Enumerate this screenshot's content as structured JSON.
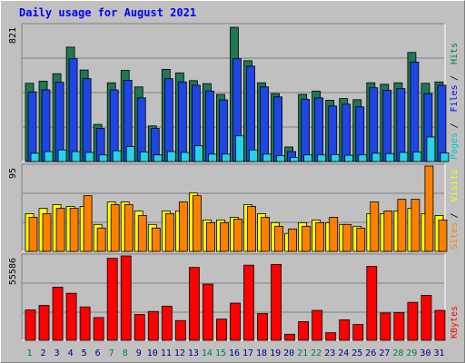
{
  "title": "Daily usage for August 2021",
  "chart_data": [
    {
      "type": "bar",
      "panel": "hits-files-pages",
      "max_label": "821",
      "legend": [
        "Pages",
        "Files",
        "Hits"
      ],
      "legend_colors": [
        "#00c8c8",
        "#0000ff",
        "#008040"
      ],
      "ylim": [
        0,
        821
      ],
      "categories": [
        "1",
        "2",
        "3",
        "4",
        "5",
        "6",
        "7",
        "8",
        "9",
        "10",
        "11",
        "12",
        "13",
        "14",
        "15",
        "16",
        "17",
        "18",
        "19",
        "20",
        "21",
        "22",
        "23",
        "24",
        "25",
        "26",
        "27",
        "28",
        "29",
        "30",
        "31"
      ],
      "weekend_days": [
        "1",
        "7",
        "8",
        "14",
        "15",
        "21",
        "22",
        "28",
        "29"
      ],
      "series": [
        {
          "name": "Hits",
          "color": "#1e7850",
          "values": [
            472,
            485,
            530,
            690,
            552,
            224,
            475,
            550,
            450,
            215,
            556,
            535,
            488,
            470,
            405,
            810,
            608,
            475,
            410,
            88,
            405,
            425,
            370,
            380,
            373,
            475,
            466,
            475,
            658,
            472,
            480
          ]
        },
        {
          "name": "Files",
          "color": "#1e46e6",
          "values": [
            420,
            432,
            478,
            620,
            500,
            200,
            432,
            490,
            384,
            200,
            500,
            480,
            460,
            425,
            372,
            620,
            575,
            450,
            390,
            60,
            375,
            384,
            335,
            346,
            330,
            445,
            430,
            440,
            600,
            410,
            460
          ]
        },
        {
          "name": "Pages",
          "color": "#28d2e6",
          "values": [
            50,
            60,
            70,
            60,
            55,
            40,
            65,
            90,
            58,
            40,
            60,
            55,
            95,
            45,
            45,
            155,
            70,
            45,
            35,
            25,
            40,
            40,
            42,
            38,
            40,
            50,
            48,
            55,
            58,
            148,
            52
          ]
        }
      ]
    },
    {
      "type": "bar",
      "panel": "visits-sites",
      "max_label": "95",
      "legend": [
        "Sites",
        "Visits"
      ],
      "legend_colors": [
        "#ff8000",
        "#ffff00"
      ],
      "ylim": [
        0,
        95
      ],
      "categories": [
        "1",
        "2",
        "3",
        "4",
        "5",
        "6",
        "7",
        "8",
        "9",
        "10",
        "11",
        "12",
        "13",
        "14",
        "15",
        "16",
        "17",
        "18",
        "19",
        "20",
        "21",
        "22",
        "23",
        "24",
        "25",
        "26",
        "27",
        "28",
        "29",
        "30",
        "31"
      ],
      "series": [
        {
          "name": "Visits",
          "color": "#ffff00",
          "values": [
            42,
            48,
            52,
            50,
            50,
            30,
            55,
            55,
            45,
            30,
            45,
            45,
            65,
            35,
            35,
            38,
            52,
            42,
            32,
            20,
            32,
            35,
            32,
            30,
            28,
            42,
            42,
            45,
            48,
            42,
            40
          ]
        },
        {
          "name": "Sites",
          "color": "#ff8000",
          "values": [
            38,
            42,
            48,
            48,
            62,
            26,
            52,
            52,
            40,
            26,
            42,
            55,
            62,
            32,
            32,
            36,
            50,
            38,
            28,
            25,
            28,
            32,
            38,
            30,
            26,
            55,
            45,
            58,
            58,
            95,
            35
          ]
        }
      ]
    },
    {
      "type": "bar",
      "panel": "kbytes",
      "max_label": "55586",
      "legend": [
        "KBytes"
      ],
      "legend_colors": [
        "#ff0000"
      ],
      "ylim": [
        0,
        55586
      ],
      "categories": [
        "1",
        "2",
        "3",
        "4",
        "5",
        "6",
        "7",
        "8",
        "9",
        "10",
        "11",
        "12",
        "13",
        "14",
        "15",
        "16",
        "17",
        "18",
        "19",
        "20",
        "21",
        "22",
        "23",
        "24",
        "25",
        "26",
        "27",
        "28",
        "29",
        "30",
        "31"
      ],
      "series": [
        {
          "name": "KBytes",
          "color": "#ff0000",
          "values": [
            20000,
            23000,
            35000,
            31000,
            22000,
            15000,
            54000,
            55586,
            17000,
            19000,
            22500,
            13000,
            48000,
            37000,
            14000,
            24500,
            49500,
            17600,
            50000,
            4000,
            12300,
            19700,
            5000,
            13500,
            10400,
            48700,
            18000,
            18200,
            25000,
            29600,
            19700
          ]
        }
      ]
    }
  ]
}
